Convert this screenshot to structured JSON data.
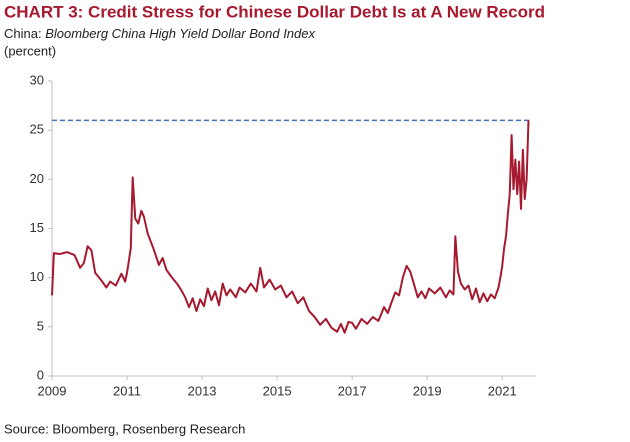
{
  "chart_data": {
    "type": "line",
    "title": "CHART 3: Credit Stress for Chinese Dollar Debt Is at A New Record",
    "subtitle": [
      "China:",
      "Bloomberg China High Yield Dollar Bond Index"
    ],
    "unit_label": "(percent)",
    "source": "Source: Bloomberg, Rosenberg Research",
    "xlim": [
      2009,
      2021.9
    ],
    "xticks": [
      2009,
      2011,
      2013,
      2015,
      2017,
      2019,
      2021
    ],
    "ylim": [
      0,
      30
    ],
    "yticks": [
      0,
      5,
      10,
      15,
      20,
      25,
      30
    ],
    "grid": false,
    "reference_line": {
      "value": 26,
      "color": "#4472c4",
      "style": "dashed"
    },
    "x": [
      2009.0,
      2009.05,
      2009.2,
      2009.4,
      2009.6,
      2009.75,
      2009.85,
      2009.95,
      2010.05,
      2010.15,
      2010.3,
      2010.45,
      2010.55,
      2010.7,
      2010.85,
      2010.95,
      2011.0,
      2011.1,
      2011.15,
      2011.22,
      2011.3,
      2011.38,
      2011.45,
      2011.55,
      2011.7,
      2011.85,
      2011.95,
      2012.05,
      2012.2,
      2012.35,
      2012.45,
      2012.55,
      2012.65,
      2012.75,
      2012.85,
      2012.95,
      2013.05,
      2013.15,
      2013.25,
      2013.35,
      2013.45,
      2013.55,
      2013.65,
      2013.75,
      2013.9,
      2014.0,
      2014.15,
      2014.3,
      2014.45,
      2014.55,
      2014.65,
      2014.8,
      2014.95,
      2015.1,
      2015.25,
      2015.4,
      2015.55,
      2015.7,
      2015.85,
      2016.0,
      2016.15,
      2016.3,
      2016.45,
      2016.6,
      2016.7,
      2016.8,
      2016.9,
      2017.0,
      2017.1,
      2017.25,
      2017.4,
      2017.55,
      2017.7,
      2017.85,
      2017.95,
      2018.05,
      2018.15,
      2018.25,
      2018.35,
      2018.45,
      2018.55,
      2018.65,
      2018.75,
      2018.85,
      2018.95,
      2019.05,
      2019.2,
      2019.35,
      2019.5,
      2019.6,
      2019.7,
      2019.75,
      2019.82,
      2019.9,
      2020.0,
      2020.1,
      2020.2,
      2020.3,
      2020.4,
      2020.5,
      2020.6,
      2020.7,
      2020.8,
      2020.9,
      2020.95,
      2021.0,
      2021.05,
      2021.1,
      2021.15,
      2021.2,
      2021.25,
      2021.3,
      2021.35,
      2021.4,
      2021.45,
      2021.5,
      2021.55,
      2021.6,
      2021.65,
      2021.7
    ],
    "series": [
      {
        "name": "Bloomberg China High Yield Dollar Bond Index",
        "color": "#a6192e",
        "values": [
          8.2,
          12.5,
          12.4,
          12.6,
          12.3,
          11.0,
          11.5,
          13.2,
          12.8,
          10.5,
          9.8,
          9.0,
          9.6,
          9.2,
          10.4,
          9.6,
          10.5,
          13.0,
          20.2,
          16.0,
          15.5,
          16.8,
          16.2,
          14.5,
          13.0,
          11.3,
          12.0,
          10.8,
          10.0,
          9.3,
          8.7,
          8.0,
          7.0,
          7.9,
          6.6,
          7.8,
          7.1,
          8.9,
          7.7,
          8.6,
          7.2,
          9.4,
          8.2,
          8.8,
          8.0,
          9.0,
          8.5,
          9.4,
          8.6,
          11.0,
          9.0,
          9.8,
          8.8,
          9.2,
          8.0,
          8.6,
          7.4,
          8.0,
          6.6,
          6.0,
          5.2,
          5.8,
          4.9,
          4.5,
          5.3,
          4.4,
          5.5,
          5.4,
          4.8,
          5.8,
          5.3,
          6.0,
          5.6,
          7.0,
          6.4,
          7.5,
          8.5,
          8.2,
          10.0,
          11.2,
          10.6,
          9.3,
          8.0,
          8.6,
          7.9,
          8.9,
          8.4,
          9.0,
          8.0,
          8.7,
          8.3,
          14.2,
          10.6,
          9.4,
          8.8,
          9.2,
          7.8,
          8.9,
          7.5,
          8.4,
          7.6,
          8.3,
          7.9,
          9.0,
          10.0,
          11.2,
          13.0,
          14.2,
          16.5,
          18.5,
          24.5,
          19.0,
          22.0,
          18.5,
          21.8,
          17.0,
          23.0,
          18.0,
          20.0,
          26.0
        ]
      }
    ]
  }
}
